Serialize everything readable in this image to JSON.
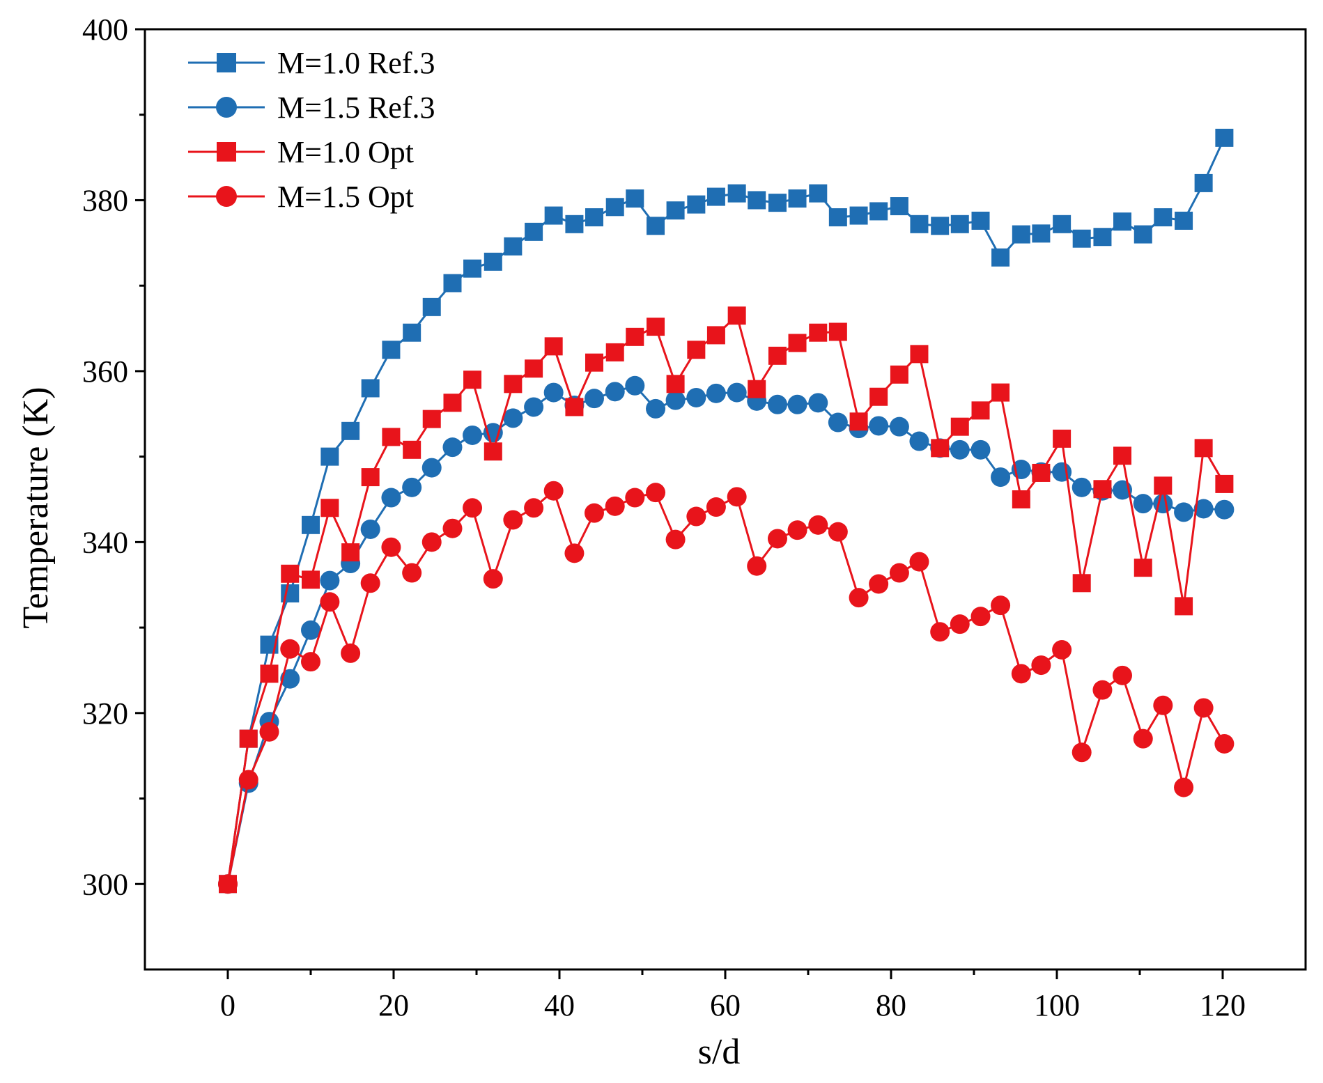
{
  "chart_data": {
    "type": "line",
    "title": "",
    "xlabel": "s/d",
    "ylabel": "Temperature (K)",
    "xlim": [
      -10,
      130
    ],
    "ylim": [
      290,
      400
    ],
    "xticks": [
      0,
      20,
      40,
      60,
      80,
      100,
      120
    ],
    "yticks": [
      300,
      320,
      340,
      360,
      380,
      400
    ],
    "legend_position": "top-left",
    "series": [
      {
        "name": "M=1.0 Ref.3",
        "color": "#1f6eb3",
        "marker": "square",
        "x": [
          0,
          2.5,
          5,
          7.5,
          10,
          12.3,
          14.8,
          17.2,
          19.7,
          22.2,
          24.6,
          27.1,
          29.5,
          32,
          34.4,
          36.9,
          39.3,
          41.8,
          44.2,
          46.7,
          49.1,
          51.6,
          54,
          56.5,
          58.9,
          61.4,
          63.8,
          66.3,
          68.7,
          71.2,
          73.6,
          76.1,
          78.5,
          81,
          83.4,
          85.9,
          88.3,
          90.8,
          93.2,
          95.7,
          98.1,
          100.6,
          103,
          105.5,
          107.9,
          110.4,
          112.8,
          115.3,
          117.7,
          120.2
        ],
        "values": [
          300,
          317,
          328,
          334,
          342,
          350,
          353,
          358,
          362.5,
          364.5,
          367.5,
          370.3,
          372,
          372.8,
          374.6,
          376.3,
          378.2,
          377.2,
          378,
          379.2,
          380.2,
          377,
          378.8,
          379.5,
          380.4,
          380.8,
          380,
          379.7,
          380.2,
          380.8,
          378,
          378.2,
          378.7,
          379.3,
          377.2,
          377,
          377.2,
          377.6,
          373.3,
          376,
          376.1,
          377.2,
          375.5,
          375.7,
          377.5,
          376,
          378,
          377.6,
          382,
          387.3
        ]
      },
      {
        "name": "M=1.5 Ref.3",
        "color": "#1f6eb3",
        "marker": "circle",
        "x": [
          0,
          2.5,
          5,
          7.5,
          10,
          12.3,
          14.8,
          17.2,
          19.7,
          22.2,
          24.6,
          27.1,
          29.5,
          32,
          34.4,
          36.9,
          39.3,
          41.8,
          44.2,
          46.7,
          49.1,
          51.6,
          54,
          56.5,
          58.9,
          61.4,
          63.8,
          66.3,
          68.7,
          71.2,
          73.6,
          76.1,
          78.5,
          81,
          83.4,
          85.9,
          88.3,
          90.8,
          93.2,
          95.7,
          98.1,
          100.6,
          103,
          105.5,
          107.9,
          110.4,
          112.8,
          115.3,
          117.7,
          120.2
        ],
        "values": [
          300,
          311.8,
          319,
          324,
          329.7,
          335.5,
          337.5,
          341.5,
          345.2,
          346.4,
          348.7,
          351.1,
          352.5,
          352.8,
          354.5,
          355.8,
          357.5,
          356,
          356.8,
          357.6,
          358.3,
          355.6,
          356.6,
          356.9,
          357.4,
          357.5,
          356.5,
          356.1,
          356.1,
          356.3,
          354,
          353.3,
          353.6,
          353.5,
          351.8,
          351,
          350.8,
          350.8,
          347.6,
          348.5,
          348.2,
          348.2,
          346.4,
          346,
          346.1,
          344.5,
          344.5,
          343.5,
          343.9,
          343.8
        ]
      },
      {
        "name": "M=1.0 Opt",
        "color": "#e8141b",
        "marker": "square",
        "x": [
          0,
          2.5,
          5,
          7.5,
          10,
          12.3,
          14.8,
          17.2,
          19.7,
          22.2,
          24.6,
          27.1,
          29.5,
          32,
          34.4,
          36.9,
          39.3,
          41.8,
          44.2,
          46.7,
          49.1,
          51.6,
          54,
          56.5,
          58.9,
          61.4,
          63.8,
          66.3,
          68.7,
          71.2,
          73.6,
          76.1,
          78.5,
          81,
          83.4,
          85.9,
          88.3,
          90.8,
          93.2,
          95.7,
          98.1,
          100.6,
          103,
          105.5,
          107.9,
          110.4,
          112.8,
          115.3,
          117.7,
          120.2
        ],
        "values": [
          300,
          317,
          324.6,
          336.3,
          335.6,
          344,
          338.8,
          347.6,
          352.3,
          350.8,
          354.4,
          356.3,
          359,
          350.6,
          358.5,
          360.3,
          362.9,
          355.8,
          361,
          362.2,
          364,
          365.2,
          358.5,
          362.5,
          364.2,
          366.5,
          357.9,
          361.8,
          363.3,
          364.5,
          364.6,
          354.1,
          357,
          359.6,
          362,
          351,
          353.5,
          355.4,
          357.5,
          345,
          348.1,
          352.1,
          335.2,
          346.2,
          350.1,
          337,
          346.6,
          332.5,
          351,
          346.8
        ]
      },
      {
        "name": "M=1.5 Opt",
        "color": "#e8141b",
        "marker": "circle",
        "x": [
          0,
          2.5,
          5,
          7.5,
          10,
          12.3,
          14.8,
          17.2,
          19.7,
          22.2,
          24.6,
          27.1,
          29.5,
          32,
          34.4,
          36.9,
          39.3,
          41.8,
          44.2,
          46.7,
          49.1,
          51.6,
          54,
          56.5,
          58.9,
          61.4,
          63.8,
          66.3,
          68.7,
          71.2,
          73.6,
          76.1,
          78.5,
          81,
          83.4,
          85.9,
          88.3,
          90.8,
          93.2,
          95.7,
          98.1,
          100.6,
          103,
          105.5,
          107.9,
          110.4,
          112.8,
          115.3,
          117.7,
          120.2
        ],
        "values": [
          300,
          312.2,
          317.8,
          327.5,
          326,
          333,
          327,
          335.2,
          339.4,
          336.4,
          340,
          341.6,
          344,
          335.7,
          342.6,
          344,
          346,
          338.7,
          343.4,
          344.2,
          345.2,
          345.8,
          340.3,
          343,
          344.1,
          345.3,
          337.2,
          340.4,
          341.4,
          342,
          341.2,
          333.5,
          335.1,
          336.4,
          337.7,
          329.5,
          330.4,
          331.3,
          332.6,
          324.6,
          325.6,
          327.4,
          315.4,
          322.7,
          324.4,
          317,
          320.9,
          311.3,
          320.6,
          316.4
        ]
      }
    ]
  }
}
